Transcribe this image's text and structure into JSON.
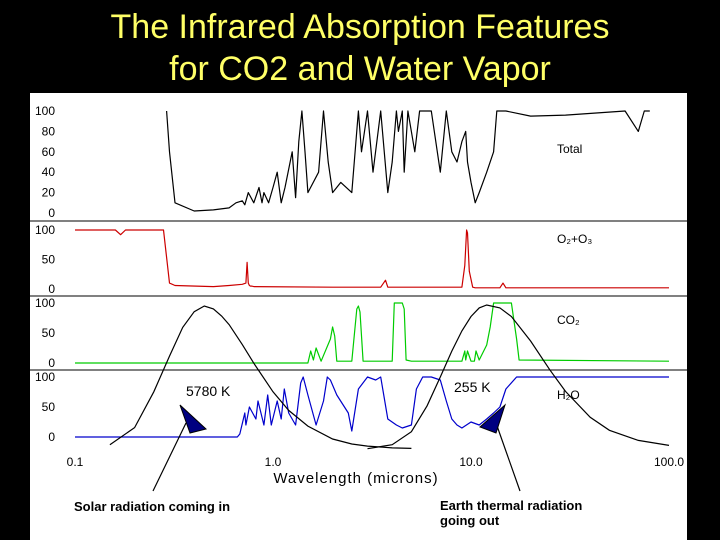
{
  "title": {
    "line1": "The Infrared Absorption Features",
    "line2": "for CO2 and Water Vapor"
  },
  "chart_data": {
    "type": "line",
    "xlabel": "Wavelength (microns)",
    "xscale": "log",
    "xlim": [
      0.1,
      100.0
    ],
    "x_ticks": [
      "0.1",
      "1.0",
      "10.0",
      "100.0"
    ],
    "panels": [
      {
        "name": "Total",
        "y_ticks": [
          "100",
          "80",
          "60",
          "40",
          "20",
          "0"
        ],
        "ylim": [
          0,
          100
        ],
        "color": "#000000",
        "x": [
          0.29,
          0.3,
          0.32,
          0.4,
          0.5,
          0.6,
          0.65,
          0.7,
          0.72,
          0.75,
          0.8,
          0.85,
          0.88,
          0.9,
          0.95,
          1.0,
          1.05,
          1.1,
          1.15,
          1.25,
          1.3,
          1.35,
          1.4,
          1.45,
          1.5,
          1.7,
          1.8,
          1.9,
          2.0,
          2.2,
          2.5,
          2.7,
          2.8,
          3.0,
          3.2,
          3.5,
          3.8,
          4.0,
          4.2,
          4.3,
          4.5,
          4.6,
          4.8,
          5.2,
          5.5,
          6.3,
          7.0,
          7.5,
          8.0,
          8.5,
          9.0,
          9.4,
          9.6,
          10.0,
          10.5,
          11.0,
          12.0,
          13.0,
          13.5,
          14.0,
          15.0,
          20.0,
          30.0,
          60.0,
          70.0,
          75.0,
          80.0
        ],
        "y": [
          100,
          60,
          10,
          2,
          3,
          5,
          10,
          12,
          8,
          20,
          10,
          25,
          10,
          20,
          10,
          25,
          40,
          10,
          25,
          60,
          15,
          70,
          100,
          60,
          20,
          40,
          100,
          50,
          20,
          30,
          20,
          100,
          60,
          100,
          40,
          100,
          20,
          50,
          100,
          80,
          100,
          40,
          100,
          60,
          100,
          100,
          40,
          100,
          60,
          50,
          70,
          80,
          50,
          30,
          10,
          20,
          40,
          60,
          100,
          100,
          100,
          95,
          96,
          100,
          80,
          100,
          100
        ]
      },
      {
        "name": "O₂+O₃",
        "y_ticks": [
          "100",
          "50",
          "0"
        ],
        "ylim": [
          0,
          100
        ],
        "color": "#cc0000",
        "x": [
          0.1,
          0.16,
          0.17,
          0.18,
          0.19,
          0.2,
          0.26,
          0.27,
          0.28,
          0.3,
          0.32,
          0.5,
          0.6,
          0.7,
          0.73,
          0.74,
          0.75,
          0.76,
          0.77,
          0.78,
          0.8,
          2.0,
          3.5,
          3.7,
          3.8,
          4.0,
          9.0,
          9.3,
          9.5,
          9.6,
          9.8,
          10.2,
          10.5,
          11.0,
          14.0,
          14.5,
          15.0,
          16.0,
          100.0
        ],
        "y": [
          100,
          100,
          92,
          100,
          100,
          100,
          100,
          100,
          100,
          10,
          6,
          4,
          6,
          8,
          10,
          45,
          10,
          6,
          5,
          5,
          4,
          3,
          3,
          15,
          3,
          3,
          3,
          40,
          100,
          95,
          30,
          3,
          2,
          2,
          2,
          10,
          2,
          2,
          2
        ]
      },
      {
        "name": "CO₂",
        "y_ticks": [
          "100",
          "50",
          "0"
        ],
        "ylim": [
          0,
          100
        ],
        "color": "#00cc00",
        "x": [
          0.1,
          1.5,
          1.55,
          1.6,
          1.65,
          1.75,
          1.95,
          2.0,
          2.05,
          2.1,
          2.5,
          2.65,
          2.7,
          2.75,
          2.85,
          3.2,
          4.0,
          4.1,
          4.3,
          4.5,
          4.6,
          4.7,
          5.0,
          9.0,
          9.3,
          9.4,
          9.6,
          10.0,
          10.4,
          10.6,
          11.0,
          12.0,
          12.5,
          13.0,
          14.0,
          15.0,
          16.0,
          17.0,
          17.5,
          100.0
        ],
        "y": [
          0,
          0,
          20,
          5,
          25,
          3,
          40,
          60,
          45,
          3,
          3,
          90,
          95,
          85,
          3,
          3,
          3,
          100,
          100,
          100,
          90,
          5,
          3,
          3,
          20,
          5,
          20,
          3,
          3,
          20,
          5,
          30,
          60,
          100,
          100,
          100,
          100,
          40,
          5,
          3
        ]
      },
      {
        "name": "H₂O",
        "y_ticks": [
          "100",
          "50",
          "0"
        ],
        "ylim": [
          0,
          100
        ],
        "color": "#0000cc",
        "x": [
          0.1,
          0.66,
          0.68,
          0.72,
          0.73,
          0.76,
          0.82,
          0.84,
          0.9,
          0.94,
          0.98,
          1.05,
          1.1,
          1.14,
          1.2,
          1.3,
          1.38,
          1.42,
          1.5,
          1.65,
          1.8,
          1.88,
          1.95,
          2.1,
          2.4,
          2.5,
          2.7,
          3.0,
          3.3,
          3.5,
          3.8,
          4.2,
          4.5,
          5.0,
          5.3,
          5.7,
          6.3,
          7.0,
          7.5,
          8.0,
          8.5,
          9.0,
          10.0,
          11.0,
          12.0,
          13.0,
          14.0,
          15.0,
          17.0,
          20.0,
          100.0
        ],
        "y": [
          0,
          0,
          5,
          40,
          20,
          50,
          30,
          60,
          20,
          70,
          20,
          60,
          30,
          80,
          40,
          20,
          90,
          100,
          70,
          20,
          60,
          100,
          95,
          70,
          40,
          10,
          80,
          100,
          95,
          100,
          30,
          20,
          15,
          20,
          80,
          100,
          100,
          95,
          60,
          30,
          20,
          15,
          25,
          20,
          30,
          40,
          50,
          80,
          100,
          100,
          100
        ]
      }
    ],
    "blackbody_curves": [
      {
        "label": "5780 K",
        "color": "#000000",
        "x": [
          0.15,
          0.2,
          0.25,
          0.3,
          0.35,
          0.4,
          0.45,
          0.5,
          0.55,
          0.6,
          0.7,
          0.8,
          1.0,
          1.2,
          1.5,
          2.0,
          2.5,
          3.0,
          4.0,
          5.0
        ],
        "y": [
          0.03,
          0.15,
          0.4,
          0.65,
          0.85,
          0.96,
          1.0,
          0.98,
          0.93,
          0.87,
          0.73,
          0.6,
          0.4,
          0.27,
          0.16,
          0.07,
          0.035,
          0.02,
          0.008,
          0.004
        ]
      },
      {
        "label": "255 K",
        "color": "#000000",
        "x": [
          3.0,
          4.0,
          5.0,
          6.0,
          7.0,
          8.0,
          9.0,
          10.0,
          11.0,
          12.0,
          14.0,
          16.0,
          20.0,
          25.0,
          30.0,
          40.0,
          50.0,
          70.0,
          100.0
        ],
        "y": [
          0.002,
          0.03,
          0.12,
          0.3,
          0.5,
          0.68,
          0.82,
          0.92,
          0.98,
          1.0,
          0.98,
          0.92,
          0.75,
          0.55,
          0.4,
          0.22,
          0.13,
          0.06,
          0.025
        ]
      }
    ],
    "annotations": [
      "Solar radiation coming in",
      "Earth thermal radiation going out"
    ],
    "grid": false
  }
}
